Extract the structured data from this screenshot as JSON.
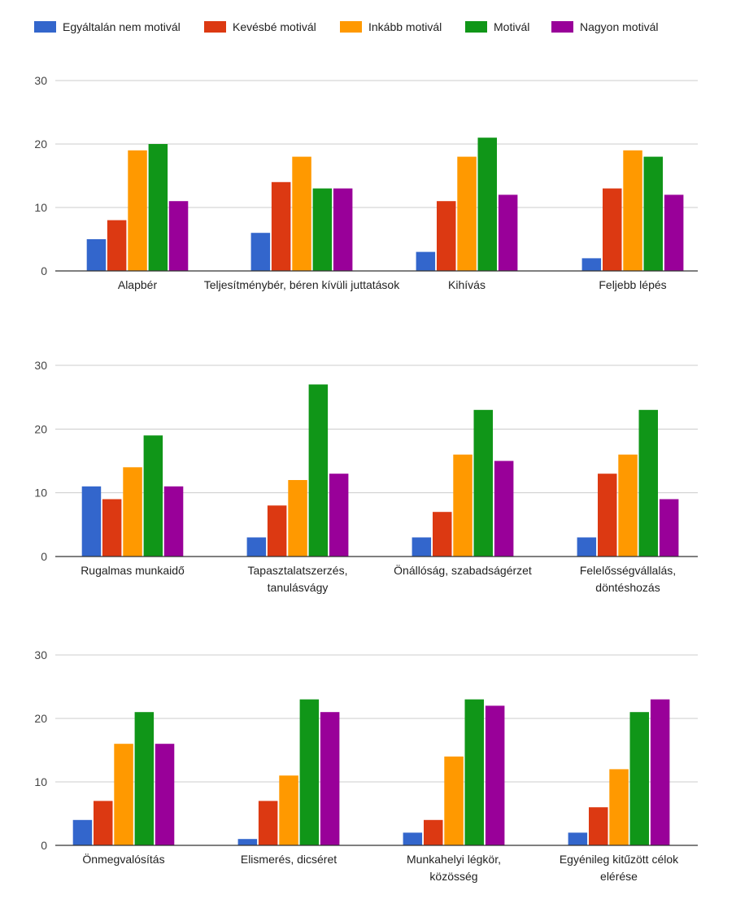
{
  "legend": [
    {
      "name": "Egyáltalán nem motivál",
      "color": "#3366cc"
    },
    {
      "name": "Kevésbé motivál",
      "color": "#dc3912"
    },
    {
      "name": "Inkább motivál",
      "color": "#ff9900"
    },
    {
      "name": "Motivál",
      "color": "#109618"
    },
    {
      "name": "Nagyon motivál",
      "color": "#990099"
    }
  ],
  "chart_data": [
    {
      "type": "bar",
      "ylim": [
        0,
        30
      ],
      "yticks": [
        "0",
        "10",
        "20",
        "30"
      ],
      "grid": true,
      "legend_position": "top",
      "categories": [
        [
          "Alapbér"
        ],
        [
          "Teljesítménybér, béren kívüli juttatások"
        ],
        [
          "Kihívás"
        ],
        [
          "Feljebb lépés"
        ]
      ],
      "series": [
        {
          "name": "Egyáltalán nem motivál",
          "values": [
            5,
            6,
            3,
            2
          ]
        },
        {
          "name": "Kevésbé motivál",
          "values": [
            8,
            14,
            11,
            13
          ]
        },
        {
          "name": "Inkább motivál",
          "values": [
            19,
            18,
            18,
            19
          ]
        },
        {
          "name": "Motivál",
          "values": [
            20,
            13,
            21,
            18
          ]
        },
        {
          "name": "Nagyon motivál",
          "values": [
            11,
            13,
            12,
            12
          ]
        }
      ]
    },
    {
      "type": "bar",
      "ylim": [
        0,
        30
      ],
      "yticks": [
        "0",
        "10",
        "20",
        "30"
      ],
      "grid": true,
      "legend_position": "top",
      "categories": [
        [
          "Rugalmas munkaidő"
        ],
        [
          "Tapasztalatszerzés,",
          "tanulásvágy"
        ],
        [
          "Önállóság, szabadságérzet"
        ],
        [
          "Felelősségvállalás,",
          "döntéshozás"
        ]
      ],
      "series": [
        {
          "name": "Egyáltalán nem motivál",
          "values": [
            11,
            3,
            3,
            3
          ]
        },
        {
          "name": "Kevésbé motivál",
          "values": [
            9,
            8,
            7,
            13
          ]
        },
        {
          "name": "Inkább motivál",
          "values": [
            14,
            12,
            16,
            16
          ]
        },
        {
          "name": "Motivál",
          "values": [
            19,
            27,
            23,
            23
          ]
        },
        {
          "name": "Nagyon motivál",
          "values": [
            11,
            13,
            15,
            9
          ]
        }
      ]
    },
    {
      "type": "bar",
      "ylim": [
        0,
        30
      ],
      "yticks": [
        "0",
        "10",
        "20",
        "30"
      ],
      "grid": true,
      "legend_position": "top",
      "categories": [
        [
          "Önmegvalósítás"
        ],
        [
          "Elismerés, dicséret"
        ],
        [
          "Munkahelyi légkör,",
          "közösség"
        ],
        [
          "Egyénileg kitűzött célok",
          "elérése"
        ]
      ],
      "series": [
        {
          "name": "Egyáltalán nem motivál",
          "values": [
            4,
            1,
            2,
            2
          ]
        },
        {
          "name": "Kevésbé motivál",
          "values": [
            7,
            7,
            4,
            6
          ]
        },
        {
          "name": "Inkább motivál",
          "values": [
            16,
            11,
            14,
            12
          ]
        },
        {
          "name": "Motivál",
          "values": [
            21,
            23,
            23,
            21
          ]
        },
        {
          "name": "Nagyon motivál",
          "values": [
            16,
            21,
            22,
            23
          ]
        }
      ]
    }
  ]
}
